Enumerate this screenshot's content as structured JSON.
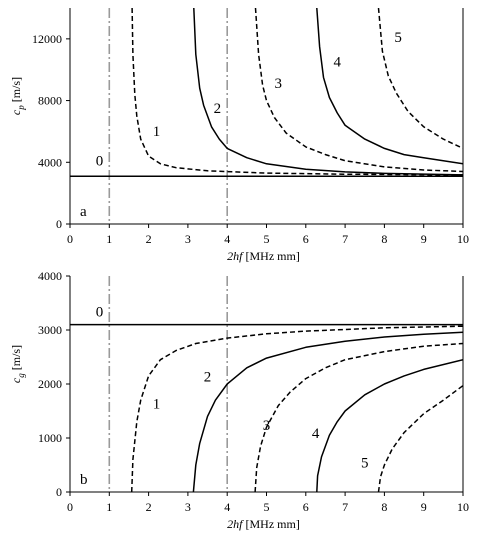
{
  "chart_data": [
    {
      "type": "line",
      "panel_label": "a",
      "xlabel_italic": "2hf",
      "xlabel_unit": "[MHz mm]",
      "ylabel_main": "c",
      "ylabel_sub": "p",
      "ylabel_unit": "[m/s]",
      "xlim": [
        0,
        10
      ],
      "ylim": [
        0,
        14000
      ],
      "xticks": [
        0,
        1,
        2,
        3,
        4,
        5,
        6,
        7,
        8,
        9,
        10
      ],
      "yticks": [
        0,
        4000,
        8000,
        12000
      ],
      "vlines": [
        1,
        4
      ],
      "series": [
        {
          "name": "0",
          "dash": false,
          "x": [
            0,
            10
          ],
          "y": [
            3100,
            3100
          ]
        },
        {
          "name": "1",
          "dash": true,
          "x": [
            1.58,
            1.6,
            1.65,
            1.7,
            1.8,
            2.0,
            2.3,
            2.7,
            3.5,
            5,
            7,
            10
          ],
          "y": [
            14000,
            11000,
            8400,
            7000,
            5500,
            4400,
            3900,
            3650,
            3450,
            3300,
            3230,
            3180
          ]
        },
        {
          "name": "2",
          "dash": false,
          "x": [
            3.15,
            3.2,
            3.3,
            3.4,
            3.6,
            3.8,
            4.0,
            4.5,
            5,
            6,
            7,
            8,
            10
          ],
          "y": [
            14000,
            11000,
            8800,
            7700,
            6300,
            5500,
            4900,
            4300,
            3900,
            3550,
            3380,
            3280,
            3180
          ]
        },
        {
          "name": "3",
          "dash": true,
          "x": [
            4.72,
            4.8,
            4.9,
            5.0,
            5.2,
            5.5,
            6.0,
            6.5,
            7,
            8,
            9,
            10
          ],
          "y": [
            14000,
            11000,
            9000,
            8000,
            6900,
            5900,
            5000,
            4500,
            4100,
            3700,
            3500,
            3400
          ]
        },
        {
          "name": "4",
          "dash": false,
          "x": [
            6.28,
            6.35,
            6.45,
            6.6,
            6.8,
            7.0,
            7.5,
            8.0,
            8.5,
            9,
            10
          ],
          "y": [
            14000,
            11500,
            9500,
            8200,
            7200,
            6400,
            5500,
            4900,
            4500,
            4300,
            3900
          ]
        },
        {
          "name": "5",
          "dash": true,
          "x": [
            7.85,
            7.95,
            8.1,
            8.3,
            8.6,
            9.0,
            9.5,
            10
          ],
          "y": [
            14000,
            11200,
            9600,
            8500,
            7300,
            6300,
            5500,
            4900
          ]
        }
      ],
      "mode_labels": [
        {
          "text": "0",
          "x": 0.75,
          "y": 3800
        },
        {
          "text": "1",
          "x": 2.2,
          "y": 5700
        },
        {
          "text": "2",
          "x": 3.75,
          "y": 7200
        },
        {
          "text": "3",
          "x": 5.3,
          "y": 8800
        },
        {
          "text": "4",
          "x": 6.8,
          "y": 10200
        },
        {
          "text": "5",
          "x": 8.35,
          "y": 11800
        }
      ]
    },
    {
      "type": "line",
      "panel_label": "b",
      "xlabel_italic": "2hf",
      "xlabel_unit": "[MHz mm]",
      "ylabel_main": "c",
      "ylabel_sub": "g",
      "ylabel_unit": "[m/s]",
      "xlim": [
        0,
        10
      ],
      "ylim": [
        0,
        4000
      ],
      "xticks": [
        0,
        1,
        2,
        3,
        4,
        5,
        6,
        7,
        8,
        9,
        10
      ],
      "yticks": [
        0,
        1000,
        2000,
        3000,
        4000
      ],
      "vlines": [
        1,
        4
      ],
      "series": [
        {
          "name": "0",
          "dash": false,
          "x": [
            0,
            10
          ],
          "y": [
            3100,
            3100
          ]
        },
        {
          "name": "1",
          "dash": true,
          "x": [
            1.57,
            1.6,
            1.7,
            1.8,
            2.0,
            2.3,
            2.7,
            3.2,
            4,
            5,
            6,
            7,
            8,
            10
          ],
          "y": [
            0,
            600,
            1300,
            1700,
            2150,
            2450,
            2620,
            2750,
            2850,
            2930,
            2980,
            3010,
            3040,
            3070
          ]
        },
        {
          "name": "2",
          "dash": false,
          "x": [
            3.14,
            3.2,
            3.3,
            3.5,
            3.7,
            4.0,
            4.5,
            5,
            6,
            7,
            8,
            9,
            10
          ],
          "y": [
            0,
            500,
            900,
            1400,
            1700,
            2000,
            2300,
            2480,
            2680,
            2790,
            2870,
            2920,
            2960
          ]
        },
        {
          "name": "3",
          "dash": true,
          "x": [
            4.71,
            4.75,
            4.85,
            5.0,
            5.3,
            5.6,
            6.0,
            6.5,
            7,
            8,
            9,
            10
          ],
          "y": [
            0,
            450,
            850,
            1200,
            1600,
            1850,
            2100,
            2300,
            2450,
            2600,
            2700,
            2750
          ]
        },
        {
          "name": "4",
          "dash": false,
          "x": [
            6.28,
            6.3,
            6.4,
            6.6,
            6.8,
            7.0,
            7.5,
            8.0,
            8.5,
            9,
            10
          ],
          "y": [
            0,
            300,
            650,
            1050,
            1300,
            1500,
            1800,
            2000,
            2150,
            2270,
            2450
          ]
        },
        {
          "name": "5",
          "dash": true,
          "x": [
            7.85,
            7.9,
            8.0,
            8.2,
            8.5,
            9.0,
            9.5,
            10
          ],
          "y": [
            0,
            280,
            500,
            800,
            1100,
            1450,
            1700,
            1970
          ]
        }
      ],
      "mode_labels": [
        {
          "text": "0",
          "x": 0.75,
          "y": 3250
        },
        {
          "text": "1",
          "x": 2.2,
          "y": 1550
        },
        {
          "text": "2",
          "x": 3.5,
          "y": 2050
        },
        {
          "text": "3",
          "x": 5.0,
          "y": 1150
        },
        {
          "text": "4",
          "x": 6.25,
          "y": 1000
        },
        {
          "text": "5",
          "x": 7.5,
          "y": 450
        }
      ]
    }
  ]
}
